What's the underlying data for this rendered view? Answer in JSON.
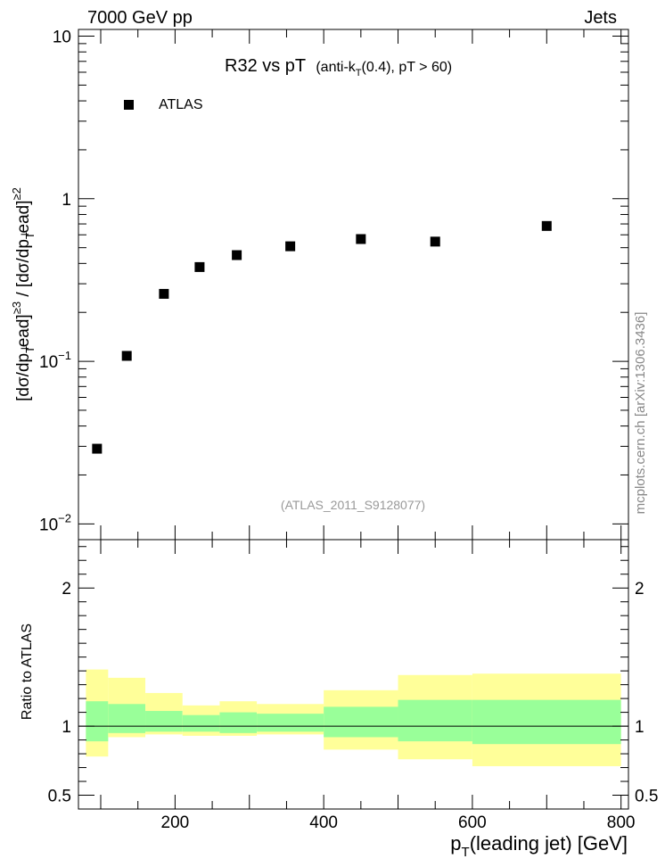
{
  "header": {
    "energy": "7000 GeV pp",
    "process": "Jets"
  },
  "main": {
    "title": "R32 vs pT",
    "subtitle_pre": "(anti-k",
    "subtitle_sub": "T",
    "subtitle_post": "(0.4), pT > 60)",
    "analysis_id": "(ATLAS_2011_S9128077)",
    "side_label": "mcplots.cern.ch [arXiv:1306.3436]"
  },
  "chart_data": [
    {
      "type": "scatter",
      "yscale": "log",
      "ylim": [
        0.008,
        11
      ],
      "xlim": [
        70,
        810
      ],
      "ylabel": "[dσ/dp_T^lead]^≥3 / [dσ/dp_T^lead]^≥2",
      "yticks": [
        "10",
        "1",
        "10^-1",
        "10^-2"
      ],
      "legend": {
        "position": "top-left",
        "entries": [
          "ATLAS"
        ]
      },
      "series": [
        {
          "name": "ATLAS",
          "x": [
            95,
            135,
            185,
            233,
            283,
            355,
            450,
            550,
            700
          ],
          "y": [
            0.029,
            0.108,
            0.26,
            0.38,
            0.45,
            0.51,
            0.565,
            0.545,
            0.68
          ]
        }
      ]
    },
    {
      "type": "area",
      "ylabel": "Ratio to ATLAS",
      "xlabel": "p_T(leading jet) [GeV]",
      "xlim": [
        70,
        810
      ],
      "ylim": [
        0.4,
        2.35
      ],
      "xticks": [
        200,
        400,
        600,
        800
      ],
      "yticks": [
        0.5,
        1,
        2
      ],
      "reference_line": 1,
      "bands": [
        {
          "xlo": 80,
          "xhi": 110,
          "yellow": [
            0.78,
            1.41
          ],
          "green": [
            0.89,
            1.18
          ]
        },
        {
          "xlo": 110,
          "xhi": 160,
          "yellow": [
            0.92,
            1.35
          ],
          "green": [
            0.95,
            1.16
          ]
        },
        {
          "xlo": 160,
          "xhi": 210,
          "yellow": [
            0.94,
            1.24
          ],
          "green": [
            0.96,
            1.11
          ]
        },
        {
          "xlo": 210,
          "xhi": 260,
          "yellow": [
            0.93,
            1.15
          ],
          "green": [
            0.96,
            1.08
          ]
        },
        {
          "xlo": 260,
          "xhi": 310,
          "yellow": [
            0.93,
            1.18
          ],
          "green": [
            0.95,
            1.1
          ]
        },
        {
          "xlo": 310,
          "xhi": 400,
          "yellow": [
            0.94,
            1.16
          ],
          "green": [
            0.96,
            1.09
          ]
        },
        {
          "xlo": 400,
          "xhi": 500,
          "yellow": [
            0.83,
            1.26
          ],
          "green": [
            0.92,
            1.14
          ]
        },
        {
          "xlo": 500,
          "xhi": 600,
          "yellow": [
            0.76,
            1.37
          ],
          "green": [
            0.89,
            1.19
          ]
        },
        {
          "xlo": 600,
          "xhi": 800,
          "yellow": [
            0.71,
            1.38
          ],
          "green": [
            0.87,
            1.19
          ]
        }
      ]
    }
  ]
}
